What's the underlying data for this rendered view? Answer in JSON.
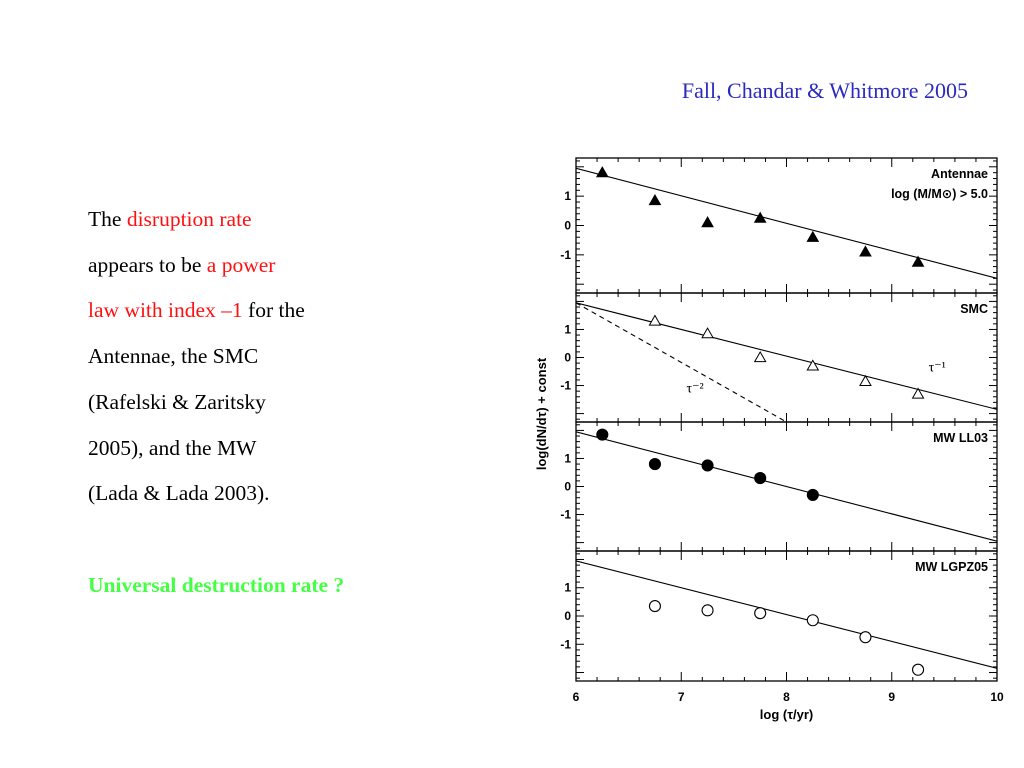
{
  "citation": "Fall, Chandar & Whitmore 2005",
  "text": {
    "lines": [
      [
        {
          "t": "The ",
          "hl": false
        },
        {
          "t": "disruption  rate",
          "hl": true
        }
      ],
      [
        {
          "t": "appears to be ",
          "hl": false
        },
        {
          "t": "a power",
          "hl": true
        }
      ],
      [
        {
          "t": "law with index –1",
          "hl": true
        },
        {
          "t": " for the",
          "hl": false
        }
      ],
      [
        {
          "t": "Antennae,  the SMC",
          "hl": false
        }
      ],
      [
        {
          "t": "(Rafelski & Zaritsky",
          "hl": false
        }
      ],
      [
        {
          "t": "2005), and the MW",
          "hl": false
        }
      ],
      [
        {
          "t": "(Lada & Lada 2003).",
          "hl": false
        }
      ]
    ],
    "question": "Universal destruction rate ?"
  },
  "colors": {
    "citation": "#2a2ac0",
    "highlight": "#ff1010",
    "question": "#44ff44",
    "ink": "#000000"
  },
  "chart_data": {
    "type": "scatter",
    "xlabel": "log (τ/yr)",
    "ylabel": "log(dN/dτ) + const",
    "xlim": [
      6,
      10
    ],
    "x_ticks": [
      6,
      7,
      8,
      9,
      10
    ],
    "ylim": [
      -2.3,
      2.3
    ],
    "y_ticks": [
      1,
      0,
      -1
    ],
    "grid": false,
    "panels": [
      {
        "label": [
          "Antennae",
          "log (M/M⊙) > 5.0"
        ],
        "marker": "filled-triangle",
        "points": {
          "x": [
            6.25,
            6.75,
            7.25,
            7.75,
            8.25,
            8.75,
            9.25
          ],
          "y": [
            1.8,
            0.85,
            0.1,
            0.25,
            -0.4,
            -0.9,
            -1.25
          ]
        },
        "lines": [
          {
            "style": "solid",
            "x": [
              6.0,
              10.0
            ],
            "y": [
              1.95,
              -1.8
            ]
          }
        ]
      },
      {
        "label": [
          "SMC"
        ],
        "marker": "open-triangle",
        "points": {
          "x": [
            6.75,
            7.25,
            7.75,
            8.25,
            8.75,
            9.25
          ],
          "y": [
            1.3,
            0.85,
            0.0,
            -0.3,
            -0.85,
            -1.3
          ]
        },
        "lines": [
          {
            "style": "solid",
            "x": [
              6.0,
              10.0
            ],
            "y": [
              1.95,
              -1.85
            ],
            "label": "τ⁻¹"
          },
          {
            "style": "dashed",
            "x": [
              6.0,
              8.0
            ],
            "y": [
              1.95,
              -2.3
            ],
            "label": "τ⁻²"
          }
        ]
      },
      {
        "label": [
          "MW LL03"
        ],
        "marker": "filled-circle",
        "points": {
          "x": [
            6.25,
            6.75,
            7.25,
            7.75,
            8.25
          ],
          "y": [
            1.85,
            0.8,
            0.75,
            0.3,
            -0.3
          ]
        },
        "lines": [
          {
            "style": "solid",
            "x": [
              6.0,
              10.0
            ],
            "y": [
              1.95,
              -1.95
            ]
          }
        ]
      },
      {
        "label": [
          "MW LGPZ05"
        ],
        "marker": "open-circle",
        "points": {
          "x": [
            6.75,
            7.25,
            7.75,
            8.25,
            8.75,
            9.25
          ],
          "y": [
            0.35,
            0.2,
            0.1,
            -0.15,
            -0.75,
            -1.9
          ]
        },
        "lines": [
          {
            "style": "solid",
            "x": [
              6.0,
              10.0
            ],
            "y": [
              1.95,
              -1.85
            ]
          }
        ]
      }
    ]
  }
}
